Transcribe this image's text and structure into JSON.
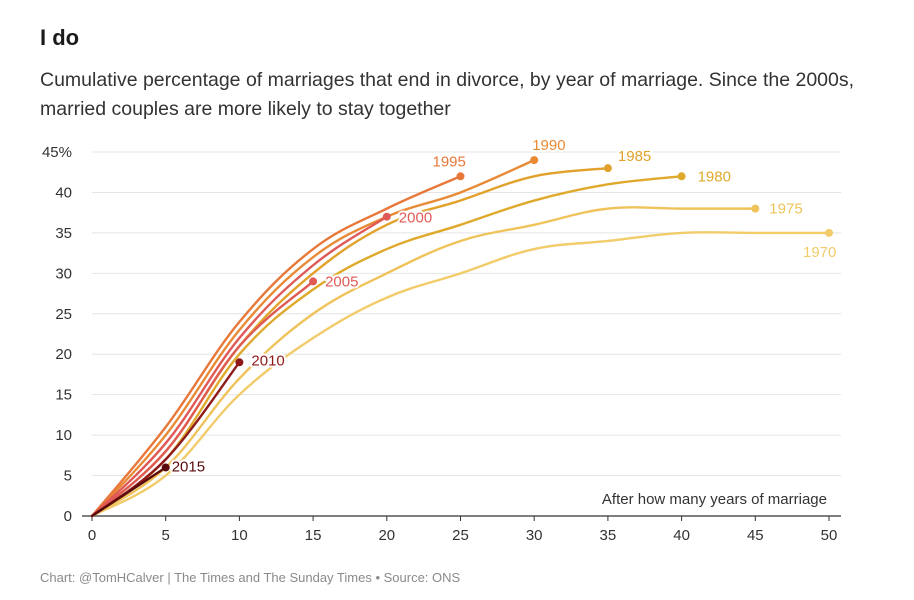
{
  "title": "I do",
  "subtitle": "Cumulative percentage of marriages that end in divorce, by year of marriage. Since the 2000s, married couples are more likely to stay together",
  "source": "Chart: @TomHCalver | The Times and The Sunday Times • Source: ONS",
  "chart_data": {
    "type": "line",
    "title": "I do",
    "subtitle": "Cumulative percentage of marriages that end in divorce, by year of marriage. Since the 2000s, married couples are more likely to stay together",
    "xlabel": "After how many years of marriage",
    "ylabel": "",
    "xlim": [
      0,
      50
    ],
    "ylim": [
      0,
      45
    ],
    "x_ticks": [
      "0",
      "5",
      "10",
      "15",
      "20",
      "25",
      "30",
      "35",
      "40",
      "45",
      "50"
    ],
    "y_ticks": [
      "0",
      "5",
      "10",
      "15",
      "20",
      "25",
      "30",
      "35",
      "40",
      "45%"
    ],
    "grid": "horizontal",
    "series": [
      {
        "name": "1970",
        "color": "#f2cc6b",
        "x": [
          0,
          5,
          10,
          15,
          20,
          25,
          30,
          35,
          40,
          45,
          50
        ],
        "y": [
          0,
          5,
          15,
          22,
          27,
          30,
          33,
          34,
          35,
          35,
          35
        ]
      },
      {
        "name": "1975",
        "color": "#efc35a",
        "x": [
          0,
          5,
          10,
          15,
          20,
          25,
          30,
          35,
          40,
          45
        ],
        "y": [
          0,
          6,
          17,
          25,
          30,
          34,
          36,
          38,
          38,
          38
        ]
      },
      {
        "name": "1980",
        "color": "#dfa92c",
        "x": [
          0,
          5,
          10,
          15,
          20,
          25,
          30,
          35,
          40
        ],
        "y": [
          0,
          7,
          20,
          28,
          33,
          36,
          39,
          41,
          42
        ]
      },
      {
        "name": "1985",
        "color": "#e2a12b",
        "x": [
          0,
          5,
          10,
          15,
          20,
          25,
          30,
          35
        ],
        "y": [
          0,
          8,
          21,
          30,
          36,
          39,
          42,
          43
        ]
      },
      {
        "name": "1990",
        "color": "#e88a35",
        "x": [
          0,
          5,
          10,
          15,
          20,
          25,
          30
        ],
        "y": [
          0,
          10,
          23,
          32,
          37,
          40,
          44
        ]
      },
      {
        "name": "1995",
        "color": "#e8783a",
        "x": [
          0,
          5,
          10,
          15,
          20,
          25
        ],
        "y": [
          0,
          11,
          24,
          33,
          38,
          42
        ]
      },
      {
        "name": "2000",
        "color": "#df5a56",
        "x": [
          0,
          5,
          10,
          15,
          20
        ],
        "y": [
          0,
          9,
          22,
          31,
          37
        ]
      },
      {
        "name": "2005",
        "color": "#e05a55",
        "x": [
          0,
          5,
          10,
          15
        ],
        "y": [
          0,
          8,
          21,
          29
        ]
      },
      {
        "name": "2010",
        "color": "#8e1a1a",
        "x": [
          0,
          5,
          10
        ],
        "y": [
          0,
          7,
          19
        ]
      },
      {
        "name": "2015",
        "color": "#5a0a0a",
        "x": [
          0,
          5
        ],
        "y": [
          0,
          6
        ]
      }
    ]
  }
}
